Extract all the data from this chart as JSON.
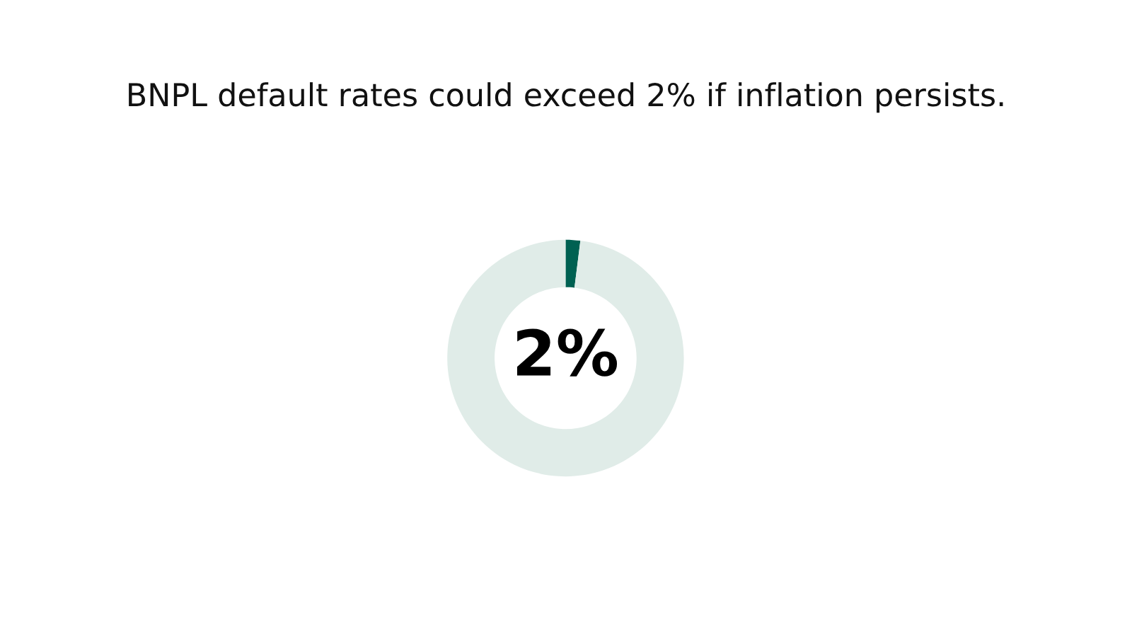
{
  "chart_data": {
    "type": "donut",
    "title": "BNPL default rates could exceed 2% if inflation persists.",
    "categories": [
      null,
      null
    ],
    "values": [
      2,
      98
    ],
    "colors": [
      "#006152",
      "#e0ece8"
    ],
    "value_labels": [
      "2%",
      null
    ]
  }
}
